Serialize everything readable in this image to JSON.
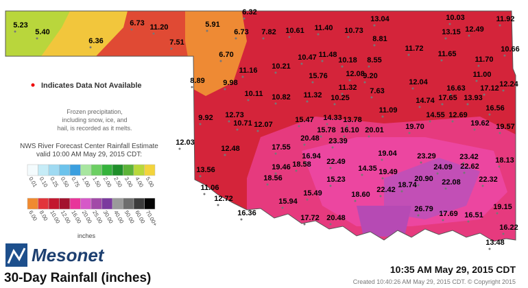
{
  "map": {
    "stations": [
      "5.23",
      "5.40",
      "6.73",
      "6.36",
      "11.20",
      "7.51",
      "6.32",
      "5.91",
      "6.73",
      "7.82",
      "10.61",
      "11.40",
      "10.73",
      "13.04",
      "8.81",
      "10.03",
      "11.92",
      "13.15",
      "12.49",
      "6.70",
      "10.47",
      "11.48",
      "10.18",
      "8.55",
      "11.72",
      "11.65",
      "11.70",
      "10.66",
      "11.16",
      "10.21",
      "15.76",
      "12.08",
      "9.20",
      "8.89",
      "9.98",
      "11.00",
      "12.04",
      "11.32",
      "7.63",
      "10.11",
      "10.82",
      "11.32",
      "10.25",
      "16.63",
      "17.12",
      "12.24",
      "14.74",
      "17.65",
      "13.93",
      "11.09",
      "12.73",
      "9.92",
      "10.71",
      "12.07",
      "15.47",
      "14.33",
      "13.78",
      "14.55",
      "12.69",
      "16.56",
      "15.78",
      "16.10",
      "20.01",
      "19.70",
      "19.62",
      "19.57",
      "12.03",
      "20.48",
      "23.39",
      "17.55",
      "12.48",
      "19.04",
      "23.29",
      "23.42",
      "16.94",
      "22.49",
      "18.58",
      "19.46",
      "18.13",
      "13.56",
      "24.09",
      "22.62",
      "14.35",
      "19.49",
      "18.56",
      "15.23",
      "20.90",
      "18.74",
      "22.08",
      "22.32",
      "11.06",
      "15.49",
      "18.60",
      "22.42",
      "12.72",
      "15.94",
      "26.79",
      "19.15",
      "16.36",
      "17.72",
      "20.48",
      "17.69",
      "16.51",
      "16.22",
      "13.48"
    ],
    "not_available_note": "Indicates Data Not Available",
    "frozen_note": [
      "Frozen precipitation,",
      "including snow, ice, and",
      "hail, is recorded as it melts."
    ],
    "estimate_note": [
      "NWS River Forecast Center Rainfall Estimate",
      "valid 10:00 AM May 29, 2015 CDT:"
    ],
    "legend_low": {
      "labels": [
        "0.01",
        "0.10",
        "0.25",
        "0.50",
        "0.75",
        "1.00",
        "1.50",
        "2.00",
        "2.50",
        "3.00",
        "4.00",
        "5.00"
      ],
      "colors": [
        "#f4fbfd",
        "#c6ecf7",
        "#9fdaf2",
        "#6cc3ec",
        "#3a9fdf",
        "#a8e6a0",
        "#6ccf63",
        "#35b33c",
        "#1f8f2a",
        "#5cb338",
        "#b8d83a",
        "#f3d43c"
      ]
    },
    "legend_high": {
      "labels": [
        "6.00",
        "8.00",
        "10.00",
        "12.00",
        "16.00",
        "20.00",
        "25.00",
        "30.00",
        "40.00",
        "50.00",
        "60.00",
        "70.00+"
      ],
      "colors": [
        "#f08a30",
        "#e2343a",
        "#c3172f",
        "#a3122e",
        "#e8359a",
        "#d659c8",
        "#a24aa8",
        "#7b3a9e",
        "#9a9a9a",
        "#6e6e6e",
        "#3c3c3c",
        "#050505"
      ]
    },
    "units": "inches",
    "brand": "Mesonet",
    "title": "30-Day Rainfall (inches)",
    "timestamp": "10:35 AM May 29, 2015 CDT",
    "created": "Created 10:40:26 AM May 29, 2015 CDT. © Copyright 2015"
  }
}
